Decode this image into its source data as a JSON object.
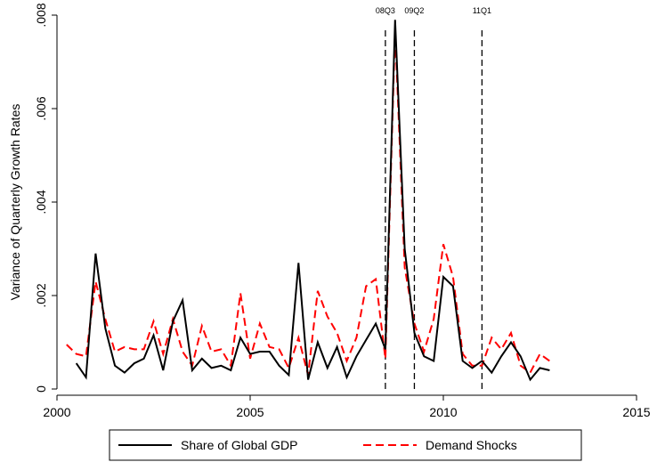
{
  "chart_data": {
    "type": "line",
    "ylabel": "Variance of Quarterly Growth Rates",
    "xlabel": "",
    "xlim": [
      2000,
      2015
    ],
    "ylim": [
      0,
      0.008
    ],
    "x_ticks": [
      2000,
      2005,
      2010,
      2015
    ],
    "x_tick_labels": [
      "2000",
      "2005",
      "2010",
      "2015"
    ],
    "y_ticks": [
      0,
      0.002,
      0.004,
      0.006,
      0.008
    ],
    "y_tick_labels": [
      "0",
      ".002",
      ".004",
      ".006",
      ".008"
    ],
    "grid": false,
    "legend_position": "bottom",
    "events": [
      {
        "label": "08Q3",
        "x": 2008.5
      },
      {
        "label": "09Q2",
        "x": 2009.25
      },
      {
        "label": "11Q1",
        "x": 2011.0
      }
    ],
    "series": [
      {
        "name": "Share of Global GDP",
        "color": "#000000",
        "dash": "solid",
        "x": [
          2000.5,
          2000.75,
          2001.0,
          2001.25,
          2001.5,
          2001.75,
          2002.0,
          2002.25,
          2002.5,
          2002.75,
          2003.0,
          2003.25,
          2003.5,
          2003.75,
          2004.0,
          2004.25,
          2004.5,
          2004.75,
          2005.0,
          2005.25,
          2005.5,
          2005.75,
          2006.0,
          2006.25,
          2006.5,
          2006.75,
          2007.0,
          2007.25,
          2007.5,
          2007.75,
          2008.0,
          2008.25,
          2008.5,
          2008.75,
          2009.0,
          2009.25,
          2009.5,
          2009.75,
          2010.0,
          2010.25,
          2010.5,
          2010.75,
          2011.0,
          2011.25,
          2011.5,
          2011.75,
          2012.0,
          2012.25,
          2012.5,
          2012.75
        ],
        "values": [
          0.00055,
          0.00025,
          0.0029,
          0.0013,
          0.0005,
          0.00035,
          0.00055,
          0.00065,
          0.00115,
          0.0004,
          0.00145,
          0.0019,
          0.0004,
          0.00065,
          0.00045,
          0.0005,
          0.0004,
          0.0011,
          0.00075,
          0.0008,
          0.0008,
          0.0005,
          0.0003,
          0.0027,
          0.0002,
          0.001,
          0.00045,
          0.0009,
          0.00025,
          0.0007,
          0.00105,
          0.0014,
          0.00085,
          0.0079,
          0.003,
          0.0012,
          0.0007,
          0.0006,
          0.0024,
          0.0022,
          0.0006,
          0.00045,
          0.0006,
          0.00035,
          0.0007,
          0.001,
          0.0007,
          0.0002,
          0.00045,
          0.0004
        ]
      },
      {
        "name": "Demand Shocks",
        "color": "#ff0000",
        "dash": "dashed",
        "x": [
          2000.25,
          2000.5,
          2000.75,
          2001.0,
          2001.25,
          2001.5,
          2001.75,
          2002.0,
          2002.25,
          2002.5,
          2002.75,
          2003.0,
          2003.25,
          2003.5,
          2003.75,
          2004.0,
          2004.25,
          2004.5,
          2004.75,
          2005.0,
          2005.25,
          2005.5,
          2005.75,
          2006.0,
          2006.25,
          2006.5,
          2006.75,
          2007.0,
          2007.25,
          2007.5,
          2007.75,
          2008.0,
          2008.25,
          2008.5,
          2008.75,
          2009.0,
          2009.25,
          2009.5,
          2009.75,
          2010.0,
          2010.25,
          2010.5,
          2010.75,
          2011.0,
          2011.25,
          2011.5,
          2011.75,
          2012.0,
          2012.25,
          2012.5,
          2012.75
        ],
        "values": [
          0.00095,
          0.00075,
          0.0007,
          0.0023,
          0.0015,
          0.0008,
          0.0009,
          0.00085,
          0.00085,
          0.00145,
          0.00075,
          0.0015,
          0.0008,
          0.0005,
          0.00135,
          0.0008,
          0.00085,
          0.0005,
          0.00205,
          0.00065,
          0.0014,
          0.0009,
          0.00085,
          0.00045,
          0.0011,
          0.0003,
          0.0021,
          0.00155,
          0.0012,
          0.0006,
          0.0011,
          0.0022,
          0.00235,
          0.00065,
          0.0077,
          0.0026,
          0.0014,
          0.0008,
          0.0015,
          0.0031,
          0.0024,
          0.00075,
          0.0005,
          0.0005,
          0.0011,
          0.00085,
          0.0012,
          0.0005,
          0.00035,
          0.00075,
          0.0006
        ]
      }
    ]
  }
}
